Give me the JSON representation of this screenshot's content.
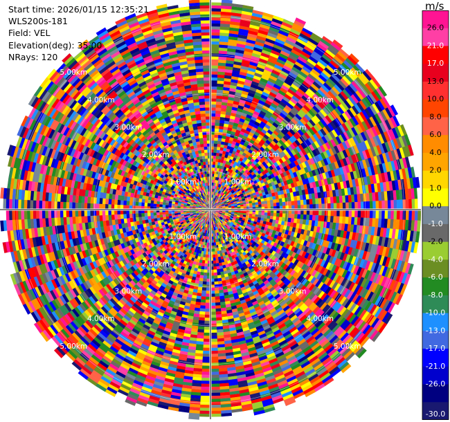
{
  "info": {
    "start_time": "Start time: 2026/01/15 12:35:21",
    "instrument": "WLS200s-181",
    "field": "Field: VEL",
    "elevation": "Elevation(deg): 35.00",
    "nrays": "NRays: 120"
  },
  "chart_data": {
    "type": "heatmap",
    "projection": "polar",
    "rays": 120,
    "field": "VEL",
    "units": "m/s",
    "range_rings": [
      "1.00km",
      "2.00km",
      "3.00km",
      "4.00km",
      "5.00km"
    ],
    "vrange": [
      -30.0,
      30.0
    ],
    "colorbar": {
      "unit_label": "m/s",
      "ticks": [
        "26.0",
        "21.0",
        "17.0",
        "13.0",
        "10.0",
        "8.0",
        "6.0",
        "4.0",
        "2.0",
        "1.0",
        "0.0",
        "-1.0",
        "-2.0",
        "-4.0",
        "-6.0",
        "-8.0",
        "-10.0",
        "-13.0",
        "-17.0",
        "-21.0",
        "-26.0",
        "-30.0"
      ],
      "colors": [
        "#ff1493",
        "#ff3fa5",
        "#ff0000",
        "#e8001e",
        "#ff3030",
        "#ff4500",
        "#ff6347",
        "#ff8c00",
        "#ffa500",
        "#ffd700",
        "#ffff00",
        "#778899",
        "#696969",
        "#9acd32",
        "#6b8e23",
        "#228b22",
        "#2e8b57",
        "#1e90ff",
        "#4169e1",
        "#0000ff",
        "#0000cd",
        "#000080",
        "#191970"
      ]
    }
  }
}
